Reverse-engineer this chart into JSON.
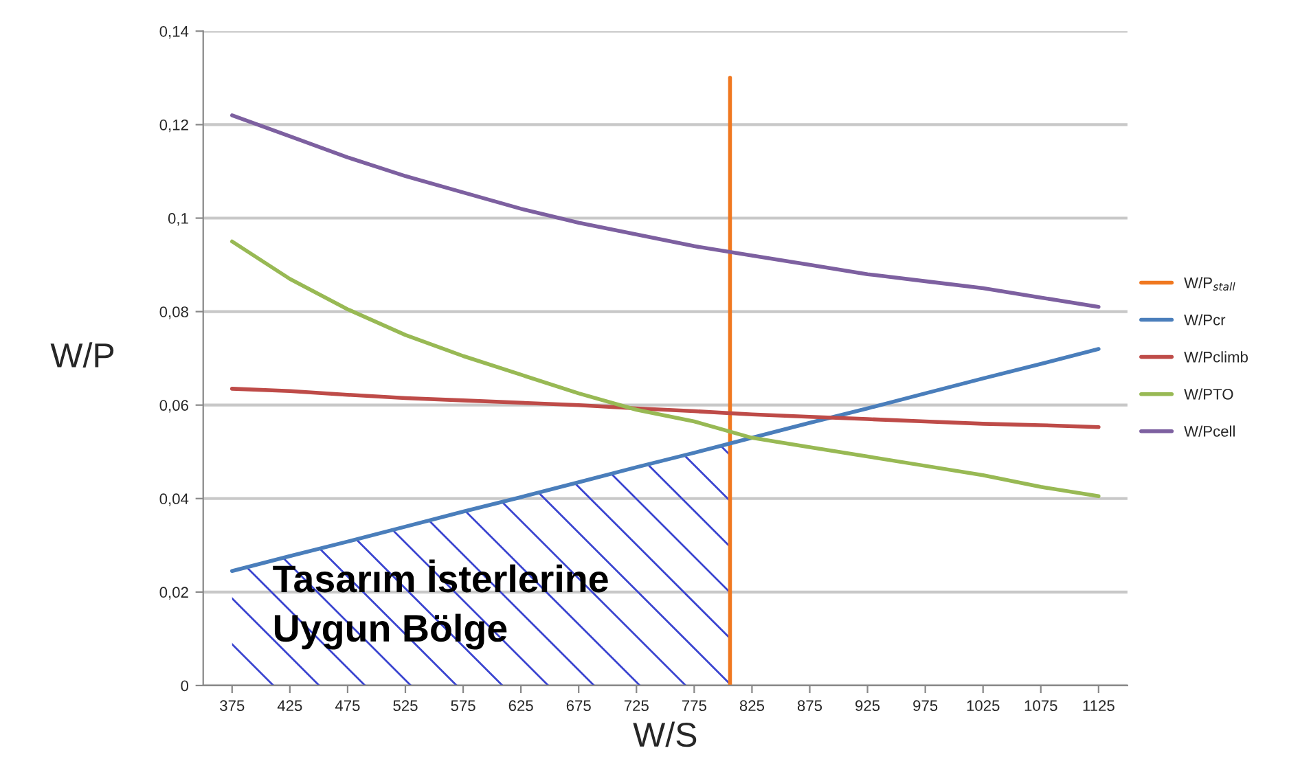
{
  "chart_data": {
    "type": "line",
    "xlabel": "W/S",
    "ylabel": "W/P",
    "x": [
      375,
      425,
      475,
      525,
      575,
      625,
      675,
      725,
      775,
      825,
      875,
      925,
      975,
      1025,
      1075,
      1125
    ],
    "series": [
      {
        "name": "W/P$_{stall}$",
        "color": "#f07820",
        "x": [
          806,
          806
        ],
        "values": [
          0,
          0.13
        ]
      },
      {
        "name": "W/Pcr",
        "color": "#4a7ebb",
        "values": [
          0.0245,
          0.0277,
          0.0308,
          0.034,
          0.0372,
          0.0403,
          0.0435,
          0.0467,
          0.0498,
          0.053,
          0.0562,
          0.0593,
          0.0625,
          0.0657,
          0.0688,
          0.072
        ]
      },
      {
        "name": "W/Pclimb",
        "color": "#be4b48",
        "values": [
          0.0635,
          0.063,
          0.0622,
          0.0615,
          0.061,
          0.0605,
          0.06,
          0.0593,
          0.0587,
          0.058,
          0.0575,
          0.057,
          0.0565,
          0.056,
          0.0557,
          0.0553
        ]
      },
      {
        "name": "W/PTO",
        "color": "#98b954",
        "values": [
          0.095,
          0.087,
          0.0805,
          0.075,
          0.0705,
          0.0665,
          0.0625,
          0.059,
          0.0565,
          0.053,
          0.051,
          0.049,
          0.047,
          0.045,
          0.0425,
          0.0405
        ]
      },
      {
        "name": "W/Pcell",
        "color": "#7d60a0",
        "values": [
          0.122,
          0.1175,
          0.113,
          0.109,
          0.1055,
          0.102,
          0.099,
          0.0965,
          0.094,
          0.092,
          0.09,
          0.088,
          0.0865,
          0.085,
          0.083,
          0.081
        ]
      }
    ],
    "xlim": [
      350,
      1150
    ],
    "xticks": [
      375,
      425,
      475,
      525,
      575,
      625,
      675,
      725,
      775,
      825,
      875,
      925,
      975,
      1025,
      1075,
      1125
    ],
    "ylim": [
      0,
      0.14
    ],
    "yticks": [
      {
        "value": 0,
        "label": "0"
      },
      {
        "value": 0.02,
        "label": "0,02"
      },
      {
        "value": 0.04,
        "label": "0,04"
      },
      {
        "value": 0.06,
        "label": "0,06"
      },
      {
        "value": 0.08,
        "label": "0,08"
      },
      {
        "value": 0.1,
        "label": "0,1"
      },
      {
        "value": 0.12,
        "label": "0,12"
      },
      {
        "value": 0.14,
        "label": "0,14"
      }
    ],
    "grid": "y",
    "legend": "right",
    "line_style": "solid",
    "annotations": [
      "Tasarım İsterlerine\nUygun Bölge"
    ]
  }
}
